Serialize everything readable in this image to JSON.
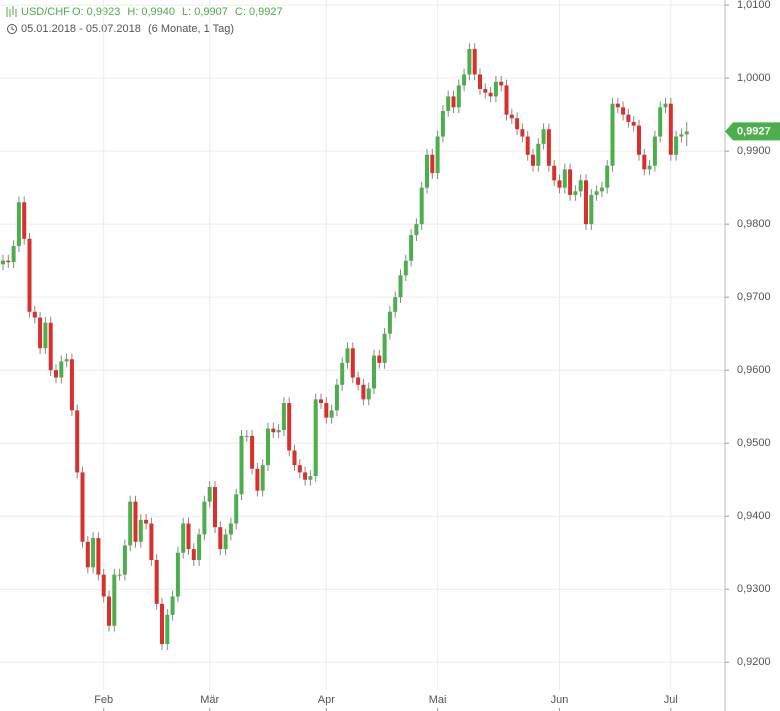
{
  "chart_data": {
    "type": "candlestick",
    "symbol": "USD/CHF",
    "quote_labels": [
      "O: 0,9923",
      "H: 0,9940",
      "L: 0,9907",
      "C: 0,9927"
    ],
    "date_range": "05.01.2018 - 05.07.2018",
    "period": "(6 Monate, 1 Tag)",
    "categories": [
      null,
      null,
      null,
      null,
      null,
      null,
      null,
      null,
      null,
      null,
      null,
      null,
      null,
      null,
      null,
      null,
      null,
      null,
      null,
      "Feb",
      null,
      null,
      null,
      null,
      null,
      null,
      null,
      null,
      null,
      null,
      null,
      null,
      null,
      null,
      null,
      null,
      null,
      null,
      null,
      "Mär",
      null,
      null,
      null,
      null,
      null,
      null,
      null,
      null,
      null,
      null,
      null,
      null,
      null,
      null,
      null,
      null,
      null,
      null,
      null,
      null,
      null,
      "Apr",
      null,
      null,
      null,
      null,
      null,
      null,
      null,
      null,
      null,
      null,
      null,
      null,
      null,
      null,
      null,
      null,
      null,
      null,
      null,
      null,
      "Mai",
      null,
      null,
      null,
      null,
      null,
      null,
      null,
      null,
      null,
      null,
      null,
      null,
      null,
      null,
      null,
      null,
      null,
      null,
      null,
      null,
      null,
      null,
      "Jun",
      null,
      null,
      null,
      null,
      null,
      null,
      null,
      null,
      null,
      null,
      null,
      null,
      null,
      null,
      null,
      null,
      null,
      null,
      null,
      null,
      "Jul",
      null,
      null,
      null
    ],
    "series": [
      {
        "name": "USD/CHF",
        "up_color": "#4cae4c",
        "down_color": "#d9302e",
        "open": [
          0.9745,
          0.975,
          0.9748,
          0.977,
          0.983,
          0.978,
          0.968,
          0.9672,
          0.963,
          0.9665,
          0.96,
          0.959,
          0.9612,
          0.9615,
          0.9545,
          0.946,
          0.9365,
          0.933,
          0.937,
          0.932,
          0.929,
          0.925,
          0.932,
          0.932,
          0.936,
          0.942,
          0.9365,
          0.9395,
          0.939,
          0.934,
          0.928,
          0.9225,
          0.9265,
          0.929,
          0.935,
          0.939,
          0.9355,
          0.934,
          0.9375,
          0.942,
          0.944,
          0.9385,
          0.9355,
          0.9375,
          0.939,
          0.943,
          0.951,
          0.951,
          0.9465,
          0.9435,
          0.947,
          0.952,
          0.9515,
          0.9518,
          0.9555,
          0.949,
          0.947,
          0.946,
          0.945,
          0.9455,
          0.956,
          0.9555,
          0.9535,
          0.9545,
          0.958,
          0.961,
          0.963,
          0.959,
          0.958,
          0.956,
          0.9575,
          0.962,
          0.961,
          0.965,
          0.968,
          0.97,
          0.973,
          0.975,
          0.9785,
          0.98,
          0.985,
          0.9895,
          0.987,
          0.992,
          0.9955,
          0.9975,
          0.996,
          0.999,
          1.0005,
          1.004,
          1.0005,
          0.9985,
          0.998,
          0.9975,
          0.9995,
          0.999,
          0.995,
          0.9945,
          0.993,
          0.992,
          0.9895,
          0.988,
          0.991,
          0.993,
          0.988,
          0.986,
          0.985,
          0.9875,
          0.984,
          0.9845,
          0.986,
          0.98,
          0.984,
          0.9845,
          0.985,
          0.988,
          0.9965,
          0.996,
          0.995,
          0.994,
          0.9935,
          0.9895,
          0.9875,
          0.988,
          0.992,
          0.996,
          0.9965,
          0.9895,
          0.992,
          0.9923
        ],
        "high": [
          0.9758,
          0.9758,
          0.9778,
          0.9838,
          0.9838,
          0.9788,
          0.9688,
          0.968,
          0.9673,
          0.9673,
          0.9608,
          0.962,
          0.9623,
          0.9623,
          0.9553,
          0.9468,
          0.9373,
          0.9378,
          0.9378,
          0.9328,
          0.9298,
          0.9328,
          0.9328,
          0.9368,
          0.9428,
          0.9428,
          0.9403,
          0.9403,
          0.9398,
          0.9348,
          0.9288,
          0.9273,
          0.9298,
          0.9358,
          0.9398,
          0.9398,
          0.9363,
          0.9383,
          0.9428,
          0.9448,
          0.9448,
          0.9393,
          0.9383,
          0.9398,
          0.9438,
          0.9518,
          0.9518,
          0.9518,
          0.9473,
          0.9478,
          0.9528,
          0.9528,
          0.9526,
          0.9563,
          0.9563,
          0.9498,
          0.9478,
          0.9468,
          0.9463,
          0.9568,
          0.9568,
          0.9563,
          0.9553,
          0.9588,
          0.9618,
          0.9638,
          0.9638,
          0.9598,
          0.9588,
          0.9583,
          0.9628,
          0.9628,
          0.9658,
          0.9688,
          0.9708,
          0.9738,
          0.9758,
          0.9793,
          0.9808,
          0.9858,
          0.9903,
          0.9903,
          0.9928,
          0.9963,
          0.9983,
          0.9983,
          0.9998,
          1.0013,
          1.0048,
          1.0048,
          1.0013,
          0.9993,
          0.9988,
          1.0003,
          1.0003,
          0.9998,
          0.9958,
          0.9953,
          0.9938,
          0.9928,
          0.9903,
          0.9918,
          0.9938,
          0.9938,
          0.9888,
          0.9868,
          0.9883,
          0.9883,
          0.9853,
          0.9868,
          0.9868,
          0.9848,
          0.9853,
          0.9858,
          0.9888,
          0.9973,
          0.9973,
          0.9968,
          0.9958,
          0.9948,
          0.9943,
          0.9903,
          0.9888,
          0.9928,
          0.9968,
          0.9973,
          0.9973,
          0.9928,
          0.9931,
          0.994
        ],
        "low": [
          0.9737,
          0.974,
          0.974,
          0.9762,
          0.9772,
          0.9672,
          0.9664,
          0.9622,
          0.9622,
          0.9592,
          0.9582,
          0.9582,
          0.9604,
          0.9537,
          0.9452,
          0.9357,
          0.9322,
          0.9322,
          0.9312,
          0.9282,
          0.9242,
          0.9242,
          0.9312,
          0.9312,
          0.9352,
          0.9357,
          0.9357,
          0.9382,
          0.9332,
          0.9272,
          0.9217,
          0.9217,
          0.9257,
          0.9282,
          0.9342,
          0.9347,
          0.9332,
          0.9332,
          0.9367,
          0.9412,
          0.9377,
          0.9347,
          0.9347,
          0.9367,
          0.9382,
          0.9422,
          0.9502,
          0.9457,
          0.9427,
          0.9427,
          0.9462,
          0.9507,
          0.9507,
          0.951,
          0.9482,
          0.9462,
          0.9452,
          0.9442,
          0.9442,
          0.9447,
          0.9547,
          0.9527,
          0.9527,
          0.9537,
          0.9572,
          0.9602,
          0.9582,
          0.9572,
          0.9552,
          0.9552,
          0.9567,
          0.9602,
          0.9602,
          0.9642,
          0.9672,
          0.9692,
          0.9722,
          0.9742,
          0.9777,
          0.9792,
          0.9842,
          0.9862,
          0.9862,
          0.9912,
          0.9947,
          0.9952,
          0.9952,
          0.9982,
          0.9997,
          0.9997,
          0.9977,
          0.9972,
          0.9967,
          0.9967,
          0.9982,
          0.9942,
          0.9937,
          0.9922,
          0.9912,
          0.9887,
          0.9872,
          0.9872,
          0.9902,
          0.9872,
          0.9852,
          0.9842,
          0.9842,
          0.9832,
          0.9832,
          0.9837,
          0.9792,
          0.9792,
          0.9832,
          0.9837,
          0.9842,
          0.9872,
          0.9952,
          0.9942,
          0.9932,
          0.9927,
          0.9887,
          0.9867,
          0.9867,
          0.9872,
          0.9912,
          0.9952,
          0.9887,
          0.9887,
          0.9912,
          0.9907
        ],
        "close": [
          0.975,
          0.9748,
          0.977,
          0.983,
          0.978,
          0.968,
          0.9672,
          0.963,
          0.9665,
          0.96,
          0.959,
          0.9612,
          0.9615,
          0.9545,
          0.946,
          0.9365,
          0.933,
          0.937,
          0.932,
          0.929,
          0.925,
          0.932,
          0.932,
          0.936,
          0.942,
          0.9365,
          0.9395,
          0.939,
          0.934,
          0.928,
          0.9225,
          0.9265,
          0.929,
          0.935,
          0.939,
          0.9355,
          0.934,
          0.9375,
          0.942,
          0.944,
          0.9385,
          0.9355,
          0.9375,
          0.939,
          0.943,
          0.951,
          0.951,
          0.9465,
          0.9435,
          0.947,
          0.952,
          0.9515,
          0.9518,
          0.9555,
          0.949,
          0.947,
          0.946,
          0.945,
          0.9455,
          0.956,
          0.9555,
          0.9535,
          0.9545,
          0.958,
          0.961,
          0.963,
          0.959,
          0.958,
          0.956,
          0.9575,
          0.962,
          0.961,
          0.965,
          0.968,
          0.97,
          0.973,
          0.975,
          0.9785,
          0.98,
          0.985,
          0.9895,
          0.987,
          0.992,
          0.9955,
          0.9975,
          0.996,
          0.999,
          1.0005,
          1.004,
          1.0005,
          0.9985,
          0.998,
          0.9975,
          0.9995,
          0.999,
          0.995,
          0.9945,
          0.993,
          0.992,
          0.9895,
          0.988,
          0.991,
          0.993,
          0.988,
          0.986,
          0.985,
          0.9875,
          0.984,
          0.9845,
          0.986,
          0.98,
          0.984,
          0.9845,
          0.985,
          0.988,
          0.9965,
          0.996,
          0.995,
          0.994,
          0.9935,
          0.9895,
          0.9875,
          0.988,
          0.992,
          0.996,
          0.9965,
          0.9895,
          0.992,
          0.9923,
          0.9927
        ]
      }
    ],
    "last_price": {
      "value": 0.9927,
      "label": "0,9927"
    },
    "ylim": [
      0.9162,
      1.0107
    ],
    "yticks": [
      {
        "value": 0.92,
        "label": "0,9200"
      },
      {
        "value": 0.93,
        "label": "0,9300"
      },
      {
        "value": 0.94,
        "label": "0,9400"
      },
      {
        "value": 0.95,
        "label": "0,9500"
      },
      {
        "value": 0.96,
        "label": "0,9600"
      },
      {
        "value": 0.97,
        "label": "0,9700"
      },
      {
        "value": 0.98,
        "label": "0,9800"
      },
      {
        "value": 0.99,
        "label": "0,9900"
      },
      {
        "value": 1.0,
        "label": "1,0000"
      },
      {
        "value": 1.01,
        "label": "1,0100"
      }
    ],
    "grid": true
  }
}
